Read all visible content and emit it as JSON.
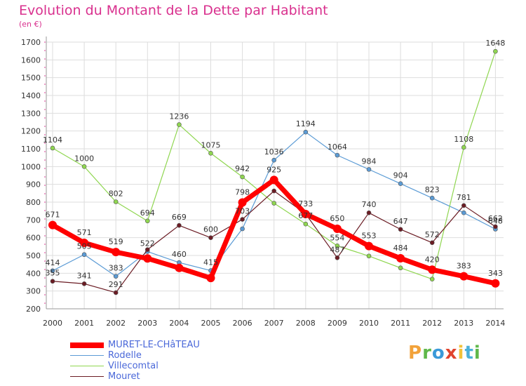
{
  "chart_data": {
    "type": "line",
    "title": "Evolution du Montant de la Dette par Habitant",
    "subtitle": "(en €)",
    "categories": [
      "2000",
      "2001",
      "2002",
      "2003",
      "2004",
      "2005",
      "2006",
      "2007",
      "2008",
      "2009",
      "2010",
      "2011",
      "2012",
      "2013",
      "2014"
    ],
    "ylim": [
      200,
      1700
    ],
    "yticks": [
      200,
      300,
      400,
      500,
      600,
      700,
      800,
      900,
      1000,
      1100,
      1200,
      1300,
      1400,
      1500,
      1600,
      1700
    ],
    "grid": true,
    "legend_position": "bottom-left",
    "series": [
      {
        "name": "MURET-LE-CHâTEAU",
        "color": "#ff0000",
        "width": 7,
        "values": [
          671,
          571,
          519,
          483,
          430,
          373,
          798,
          925,
          733,
          650,
          553,
          484,
          420,
          383,
          343
        ],
        "labels": [
          "671",
          "571",
          "519",
          "",
          "",
          "",
          "798",
          "925",
          "733",
          "650",
          "553",
          "484",
          "420",
          "383",
          "343"
        ]
      },
      {
        "name": "Rodelle",
        "color": "#5b9bd5",
        "width": 1.2,
        "values": [
          414,
          505,
          383,
          522,
          460,
          415,
          650,
          1036,
          1194,
          1064,
          984,
          904,
          823,
          740,
          648
        ],
        "labels": [
          "414",
          "505",
          "383",
          "522",
          "460",
          "415",
          "",
          "1036",
          "1194",
          "1064",
          "984",
          "904",
          "823",
          "",
          "648"
        ]
      },
      {
        "name": "Villecomtal",
        "color": "#8fd650",
        "width": 1.2,
        "values": [
          1104,
          1000,
          802,
          694,
          1236,
          1075,
          942,
          794,
          677,
          554,
          497,
          430,
          367,
          1108,
          1648
        ],
        "labels": [
          "1104",
          "1000",
          "802",
          "694",
          "1236",
          "1075",
          "942",
          "",
          "677",
          "554",
          "",
          "",
          "",
          "1108",
          "1648"
        ]
      },
      {
        "name": "Mouret",
        "color": "#6b1c24",
        "width": 1.2,
        "values": [
          355,
          341,
          291,
          533,
          669,
          600,
          703,
          863,
          734,
          487,
          740,
          647,
          572,
          781,
          662
        ],
        "labels": [
          "355",
          "341",
          "291",
          "",
          "669",
          "600",
          "703",
          "",
          "",
          "487",
          "740",
          "647",
          "572",
          "781",
          "662"
        ]
      }
    ],
    "label_style": {
      "color": "#333333"
    },
    "axis_color": "#999999",
    "grid_color": "#dddddd"
  },
  "brand": {
    "letters": [
      "P",
      "r",
      "o",
      "x",
      "i",
      "t",
      "i"
    ]
  },
  "colors": {
    "title": "#d9308e",
    "legend_text": "#4a68d9"
  }
}
